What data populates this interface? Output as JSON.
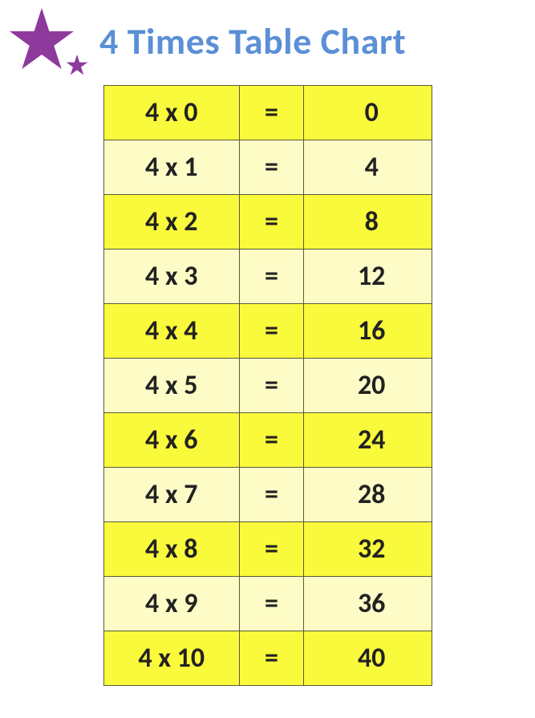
{
  "title": "4 Times Table Chart",
  "title_color": "#5b8fd6",
  "star_color": "#8e3a9d",
  "table": {
    "type": "table",
    "multiplier": 4,
    "row_colors": {
      "even": "#fafa3c",
      "odd": "#fdfcc7"
    },
    "border_color": "#5a5a3a",
    "text_color": "#222222",
    "font_size": 34,
    "rows": [
      {
        "expr": "4 x 0",
        "eq": "=",
        "res": "0"
      },
      {
        "expr": "4 x 1",
        "eq": "=",
        "res": "4"
      },
      {
        "expr": "4 x 2",
        "eq": "=",
        "res": "8"
      },
      {
        "expr": "4 x 3",
        "eq": "=",
        "res": "12"
      },
      {
        "expr": "4 x 4",
        "eq": "=",
        "res": "16"
      },
      {
        "expr": "4 x 5",
        "eq": "=",
        "res": "20"
      },
      {
        "expr": "4 x 6",
        "eq": "=",
        "res": "24"
      },
      {
        "expr": "4 x 7",
        "eq": "=",
        "res": "28"
      },
      {
        "expr": "4 x 8",
        "eq": "=",
        "res": "32"
      },
      {
        "expr": "4 x 9",
        "eq": "=",
        "res": "36"
      },
      {
        "expr": "4 x 10",
        "eq": "=",
        "res": "40"
      }
    ]
  }
}
